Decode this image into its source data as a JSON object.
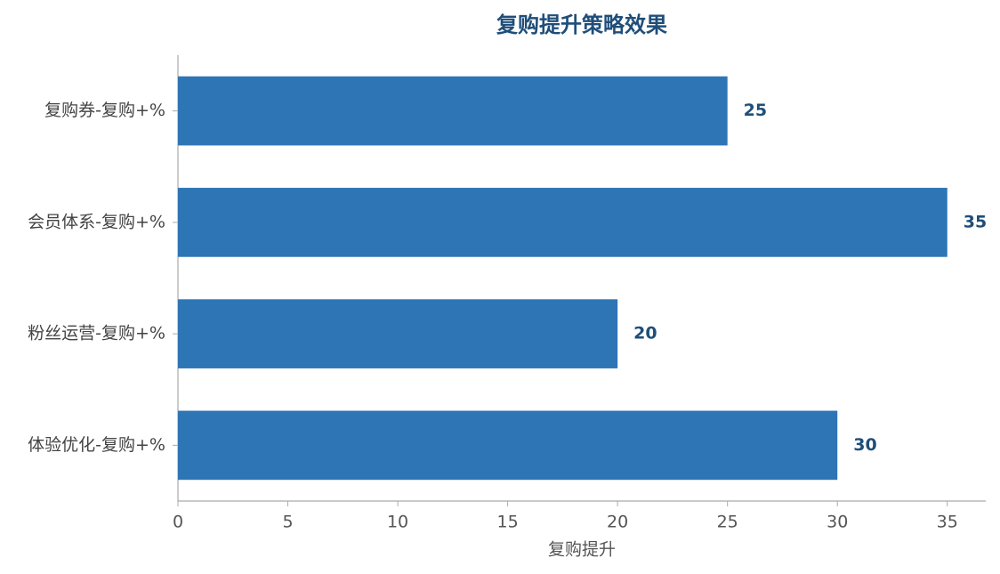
{
  "chart_data": {
    "type": "barh",
    "title": "复购提升策略效果",
    "x_label": "复购提升",
    "categories": [
      "复购券-复购+%",
      "会员体系-复购+%",
      "粉丝运营-复购+%",
      "体验优化-复购+%"
    ],
    "values": [
      25,
      35,
      20,
      30
    ],
    "color": "#2e75b6",
    "xlim": [
      0,
      36.75
    ],
    "xticks": [
      0,
      5,
      10,
      15,
      20,
      25,
      30,
      35
    ],
    "grid": false
  }
}
